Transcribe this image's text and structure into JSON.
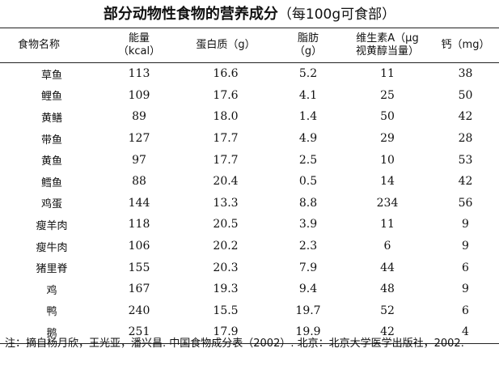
{
  "title": "部分动物性食物的营养成分",
  "subtitle": "（每100g可食部）",
  "columns": [
    {
      "label": "食物名称"
    },
    {
      "label": "能量\n（kcal）"
    },
    {
      "label": "蛋白质（g）"
    },
    {
      "label": "脂肪\n（g）"
    },
    {
      "label": "维生素A（μg\n视黄醇当量）"
    },
    {
      "label": "钙（mg）"
    }
  ],
  "rows": [
    {
      "name": "草鱼",
      "energy": "113",
      "protein": "16.6",
      "fat": "5.2",
      "vita": "11",
      "calcium": "38"
    },
    {
      "name": "鲤鱼",
      "energy": "109",
      "protein": "17.6",
      "fat": "4.1",
      "vita": "25",
      "calcium": "50"
    },
    {
      "name": "黄鳝",
      "energy": "89",
      "protein": "18.0",
      "fat": "1.4",
      "vita": "50",
      "calcium": "42"
    },
    {
      "name": "带鱼",
      "energy": "127",
      "protein": "17.7",
      "fat": "4.9",
      "vita": "29",
      "calcium": "28"
    },
    {
      "name": "黄鱼",
      "energy": "97",
      "protein": "17.7",
      "fat": "2.5",
      "vita": "10",
      "calcium": "53"
    },
    {
      "name": "鳕鱼",
      "energy": "88",
      "protein": "20.4",
      "fat": "0.5",
      "vita": "14",
      "calcium": "42"
    },
    {
      "name": "鸡蛋",
      "energy": "144",
      "protein": "13.3",
      "fat": "8.8",
      "vita": "234",
      "calcium": "56"
    },
    {
      "name": "瘦羊肉",
      "energy": "118",
      "protein": "20.5",
      "fat": "3.9",
      "vita": "11",
      "calcium": "9"
    },
    {
      "name": "瘦牛肉",
      "energy": "106",
      "protein": "20.2",
      "fat": "2.3",
      "vita": "6",
      "calcium": "9"
    },
    {
      "name": "猪里脊",
      "energy": "155",
      "protein": "20.3",
      "fat": "7.9",
      "vita": "44",
      "calcium": "6"
    },
    {
      "name": "鸡",
      "energy": "167",
      "protein": "19.3",
      "fat": "9.4",
      "vita": "48",
      "calcium": "9"
    },
    {
      "name": "鸭",
      "energy": "240",
      "protein": "15.5",
      "fat": "19.7",
      "vita": "52",
      "calcium": "6"
    },
    {
      "name": "鹅",
      "energy": "251",
      "protein": "17.9",
      "fat": "19.9",
      "vita": "42",
      "calcium": "4"
    }
  ],
  "note": "注：摘自杨月欣，王光亚，潘兴昌. 中国食物成分表（2002）. 北京：北京大学医学出版社，2002."
}
